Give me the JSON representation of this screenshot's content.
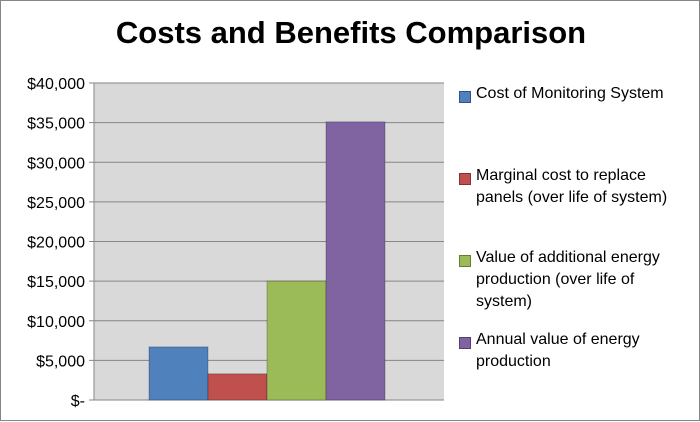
{
  "chart_data": {
    "type": "bar",
    "title": "Costs and Benefits Comparison",
    "xlabel": "",
    "ylabel": "",
    "ylim": [
      0,
      40000
    ],
    "y_ticks": [
      "$-",
      "$5,000",
      "$10,000",
      "$15,000",
      "$20,000",
      "$25,000",
      "$30,000",
      "$35,000",
      "$40,000"
    ],
    "grid": true,
    "legend_position": "right",
    "series": [
      {
        "name": "Cost of Monitoring System",
        "values": [
          6700
        ],
        "color": "#4F81BD"
      },
      {
        "name": "Marginal cost to replace panels (over life of system)",
        "values": [
          3300
        ],
        "color": "#C0504D"
      },
      {
        "name": "Value of additional energy production (over life of system)",
        "values": [
          15000
        ],
        "color": "#9BBB59"
      },
      {
        "name": "Annual value of energy production",
        "values": [
          35100
        ],
        "color": "#8064A2"
      }
    ],
    "plot_background": "#D9D9D9"
  }
}
